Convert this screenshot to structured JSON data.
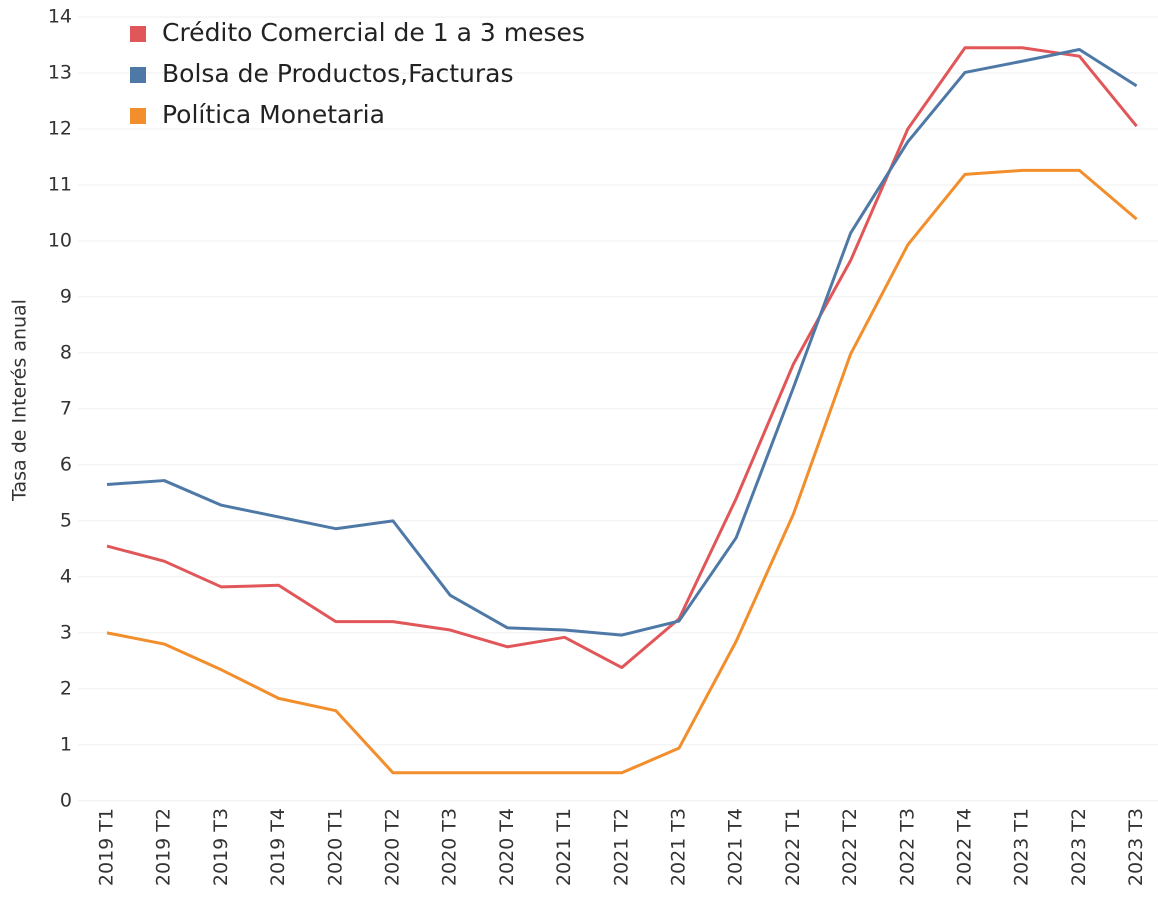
{
  "chart_data": {
    "type": "line",
    "y_label": "Tasa de Interés anual",
    "categories": [
      "2019 T1",
      "2019 T2",
      "2019 T3",
      "2019 T4",
      "2020 T1",
      "2020 T2",
      "2020 T3",
      "2020 T4",
      "2021 T1",
      "2021 T2",
      "2021 T3",
      "2021 T4",
      "2022 T1",
      "2022 T2",
      "2022 T3",
      "2022 T4",
      "2023 T1",
      "2023 T2",
      "2023 T3"
    ],
    "series": [
      {
        "name": "Crédito Comercial de 1 a 3 meses",
        "color": "#e15759",
        "values": [
          4.55,
          4.28,
          3.82,
          3.85,
          3.2,
          3.2,
          3.05,
          2.75,
          2.92,
          2.38,
          3.25,
          5.4,
          7.8,
          9.65,
          12.0,
          13.45,
          13.45,
          13.3,
          12.05
        ]
      },
      {
        "name": "Bolsa de Productos,Facturas",
        "color": "#4e79a7",
        "values": [
          5.65,
          5.72,
          5.28,
          5.07,
          4.86,
          5.0,
          3.67,
          3.09,
          3.05,
          2.96,
          3.21,
          4.7,
          7.38,
          10.14,
          11.77,
          13.01,
          13.21,
          13.42,
          12.77
        ]
      },
      {
        "name": "Política Monetaria",
        "color": "#f28e2b",
        "values": [
          3.0,
          2.8,
          2.34,
          1.83,
          1.61,
          0.5,
          0.5,
          0.5,
          0.5,
          0.5,
          0.94,
          2.85,
          5.12,
          7.98,
          9.93,
          11.19,
          11.26,
          11.26,
          10.39
        ]
      }
    ],
    "ylim": [
      -0.2,
      14.25
    ],
    "yticks": [
      0,
      1,
      2,
      3,
      4,
      5,
      6,
      7,
      8,
      9,
      10,
      11,
      12,
      13,
      14
    ],
    "grid": true,
    "legend": "top-left"
  }
}
